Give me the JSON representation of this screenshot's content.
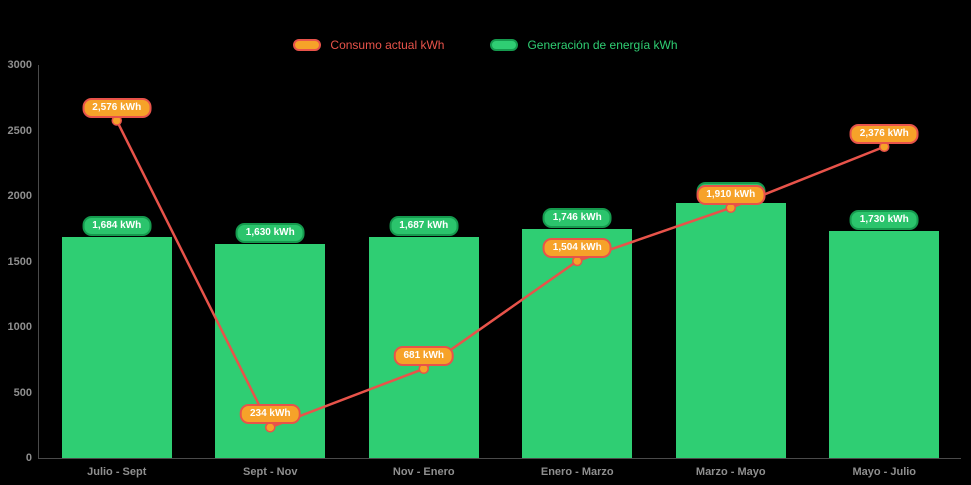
{
  "colors": {
    "background": "#000000",
    "bar": "#2fce73",
    "bar_label_bg": "#2bc46c",
    "bar_label_border": "#159a4e",
    "line": "#e8534a",
    "marker": "#f6a229",
    "point_label_bg": "#f6a229",
    "point_label_border": "#e8534a",
    "axis_text": "#8f8f8f",
    "axis_line": "#4a4a4a"
  },
  "chart_data": {
    "type": "combo",
    "title": "",
    "xlabel": "",
    "ylabel": "",
    "categories": [
      "Julio - Sept",
      "Sept - Nov",
      "Nov - Enero",
      "Enero - Marzo",
      "Marzo - Mayo",
      "Mayo - Julio"
    ],
    "series": [
      {
        "name": "Consumo actual kWh",
        "type": "line",
        "values": [
          2576,
          234,
          681,
          1504,
          1910,
          2376
        ],
        "labels": [
          "2,576 kWh",
          "234 kWh",
          "681 kWh",
          "1,504 kWh",
          "1,910 kWh",
          "2,376 kWh"
        ],
        "color": "#e8534a"
      },
      {
        "name": "Generación de energía kWh",
        "type": "bar",
        "values": [
          1684,
          1630,
          1687,
          1746,
          1950,
          1730
        ],
        "labels": [
          "1,684 kWh",
          "1,630 kWh",
          "1,687 kWh",
          "1,746 kWh",
          "1,950 kWh",
          "1,730 kWh"
        ],
        "color": "#2fce73"
      }
    ],
    "ylim": [
      0,
      3000
    ],
    "yticks": [
      0,
      500,
      1000,
      1500,
      2000,
      2500,
      3000
    ],
    "ytick_labels": [
      "0",
      "500",
      "1000",
      "1500",
      "2000",
      "2500",
      "3000"
    ],
    "grid": false,
    "legend_position": "top"
  }
}
